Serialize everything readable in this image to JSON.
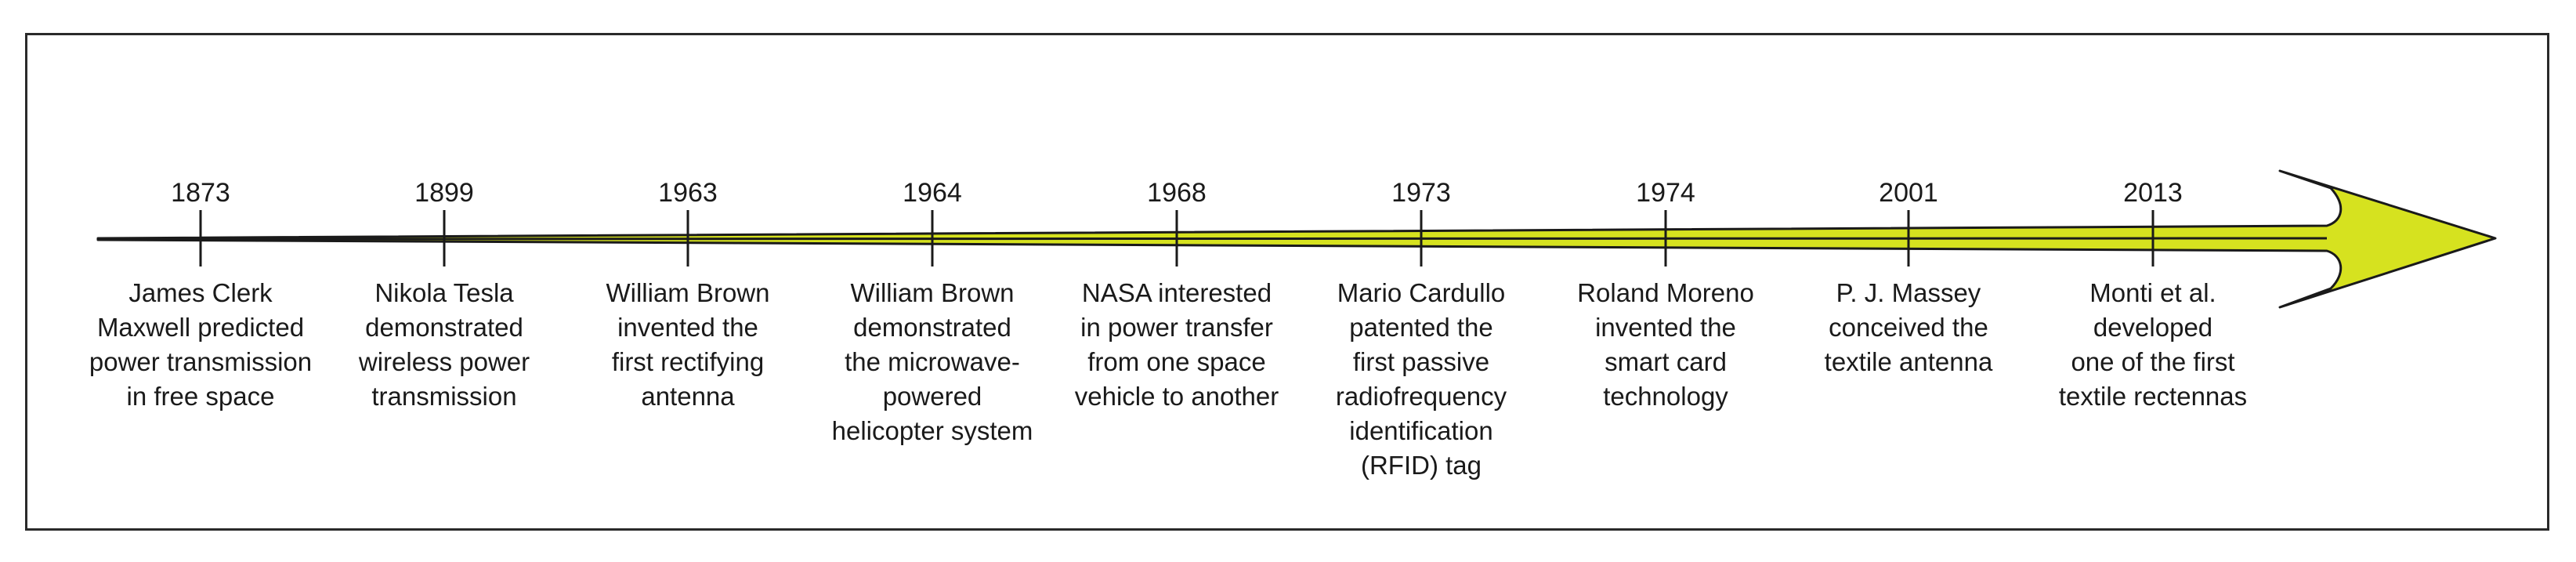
{
  "timeline": {
    "colors": {
      "arrow_fill": "#d6e21f",
      "stroke": "#1a1a1a",
      "frame": "#2a2a2a"
    },
    "events": [
      {
        "year": "1873",
        "text": "James Clerk\nMaxwell predicted\npower transmission\nin free space"
      },
      {
        "year": "1899",
        "text": "Nikola Tesla\ndemonstrated\nwireless power\ntransmission"
      },
      {
        "year": "1963",
        "text": "William Brown\ninvented the\nfirst rectifying\nantenna"
      },
      {
        "year": "1964",
        "text": "William Brown\ndemonstrated\nthe microwave-\npowered\nhelicopter system"
      },
      {
        "year": "1968",
        "text": "NASA interested\nin power transfer\nfrom one space\nvehicle to another"
      },
      {
        "year": "1973",
        "text": "Mario Cardullo\npatented the\nfirst passive\nradiofrequency\nidentification\n(RFID) tag"
      },
      {
        "year": "1974",
        "text": "Roland Moreno\ninvented the\nsmart card\ntechnology"
      },
      {
        "year": "2001",
        "text": "P. J. Massey\nconceived the\ntextile antenna"
      },
      {
        "year": "2013",
        "text": "Monti et al.\ndeveloped\none of the first\ntextile rectennas"
      }
    ]
  }
}
